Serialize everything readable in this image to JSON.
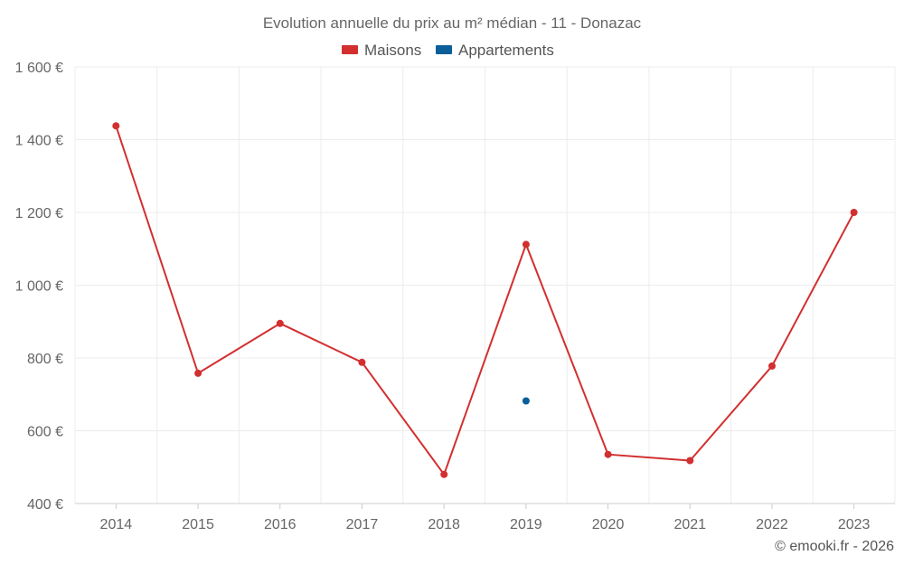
{
  "chart_data": {
    "type": "line",
    "title": "Evolution annuelle du prix au m² médian - 11 - Donazac",
    "x": [
      "2014",
      "2015",
      "2016",
      "2017",
      "2018",
      "2019",
      "2020",
      "2021",
      "2022",
      "2023"
    ],
    "y_ticks": [
      "400 €",
      "600 €",
      "800 €",
      "1 000 €",
      "1 200 €",
      "1 400 €",
      "1 600 €"
    ],
    "ylim": [
      400,
      1600
    ],
    "grid": true,
    "legend_position": "top-center",
    "series": [
      {
        "name": "Maisons",
        "color": "#d32f2f",
        "values": [
          1438,
          758,
          895,
          788,
          480,
          1112,
          535,
          518,
          778,
          1200
        ]
      },
      {
        "name": "Appartements",
        "color": "#0b5f99",
        "values": [
          null,
          null,
          null,
          null,
          null,
          682,
          null,
          null,
          null,
          null
        ]
      }
    ],
    "credit": "© emooki.fr - 2026"
  }
}
